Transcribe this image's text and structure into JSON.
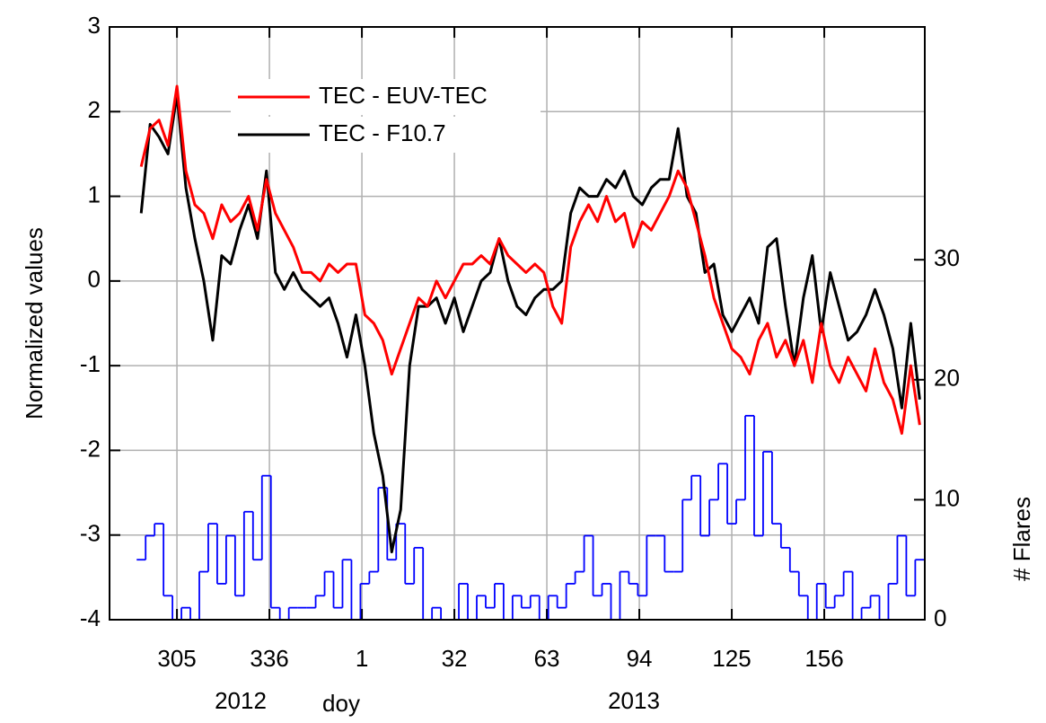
{
  "chart_data": {
    "type": "line",
    "x_label": "doy",
    "y_label": "Normalized values",
    "y2_label": "# Flares",
    "annotations": [
      "2012",
      "2013"
    ],
    "legend": "upper left",
    "grid": true,
    "xlim": [
      282.4,
      555.7
    ],
    "xticks": [
      {
        "value": 305,
        "label": "305"
      },
      {
        "value": 336,
        "label": "336"
      },
      {
        "value": 367,
        "label": "1"
      },
      {
        "value": 398,
        "label": "32"
      },
      {
        "value": 429,
        "label": "63"
      },
      {
        "value": 460,
        "label": "94"
      },
      {
        "value": 491,
        "label": "125"
      },
      {
        "value": 522,
        "label": "156"
      }
    ],
    "ylim": [
      -4,
      3
    ],
    "yticks": [
      -4,
      -3,
      -2,
      -1,
      0,
      1,
      2,
      3
    ],
    "y2lim": [
      0,
      49.4
    ],
    "y2ticks": [
      0,
      10,
      20,
      30
    ],
    "x": [
      293,
      296,
      299,
      302,
      305,
      308,
      311,
      314,
      317,
      320,
      323,
      326,
      329,
      332,
      335,
      338,
      341,
      344,
      347,
      350,
      353,
      356,
      359,
      362,
      365,
      368,
      371,
      374,
      377,
      380,
      383,
      386,
      389,
      392,
      395,
      398,
      401,
      404,
      407,
      410,
      413,
      416,
      419,
      422,
      425,
      428,
      431,
      434,
      437,
      440,
      443,
      446,
      449,
      452,
      455,
      458,
      461,
      464,
      467,
      470,
      473,
      476,
      479,
      482,
      485,
      488,
      491,
      494,
      497,
      500,
      503,
      506,
      509,
      512,
      515,
      518,
      521,
      524,
      527,
      530,
      533,
      536,
      539,
      542,
      545,
      548,
      551,
      554
    ],
    "series": [
      {
        "name": "TEC - EUV-TEC",
        "color": "#ff0000",
        "values": [
          1.35,
          1.8,
          1.9,
          1.6,
          2.3,
          1.3,
          0.9,
          0.8,
          0.5,
          0.9,
          0.7,
          0.8,
          1.0,
          0.6,
          1.2,
          0.8,
          0.6,
          0.4,
          0.1,
          0.1,
          0.0,
          0.2,
          0.1,
          0.2,
          0.2,
          -0.4,
          -0.5,
          -0.7,
          -1.1,
          -0.8,
          -0.5,
          -0.2,
          -0.3,
          0.0,
          -0.2,
          0.0,
          0.2,
          0.2,
          0.3,
          0.2,
          0.5,
          0.3,
          0.2,
          0.1,
          0.2,
          0.1,
          -0.3,
          -0.5,
          0.4,
          0.7,
          0.9,
          0.7,
          1.0,
          0.7,
          0.8,
          0.4,
          0.7,
          0.6,
          0.8,
          1.0,
          1.3,
          1.1,
          0.7,
          0.3,
          -0.2,
          -0.5,
          -0.8,
          -0.9,
          -1.1,
          -0.7,
          -0.5,
          -0.9,
          -0.7,
          -1.0,
          -0.7,
          -1.2,
          -0.5,
          -1.0,
          -1.2,
          -0.9,
          -1.1,
          -1.3,
          -0.8,
          -1.2,
          -1.4,
          -1.8,
          -1.0,
          -1.7
        ]
      },
      {
        "name": "TEC - F10.7",
        "color": "#000000",
        "values": [
          0.8,
          1.85,
          1.7,
          1.5,
          2.2,
          1.1,
          0.5,
          0.0,
          -0.7,
          0.3,
          0.2,
          0.6,
          0.9,
          0.5,
          1.3,
          0.1,
          -0.1,
          0.1,
          -0.1,
          -0.2,
          -0.3,
          -0.2,
          -0.5,
          -0.9,
          -0.4,
          -1.0,
          -1.8,
          -2.3,
          -3.2,
          -2.7,
          -1.0,
          -0.3,
          -0.3,
          -0.2,
          -0.5,
          -0.2,
          -0.6,
          -0.3,
          0.0,
          0.1,
          0.5,
          0.0,
          -0.3,
          -0.4,
          -0.2,
          -0.1,
          -0.1,
          0.0,
          0.8,
          1.1,
          1.0,
          1.0,
          1.2,
          1.1,
          1.3,
          1.0,
          0.9,
          1.1,
          1.2,
          1.2,
          1.8,
          1.0,
          0.8,
          0.1,
          0.2,
          -0.4,
          -0.6,
          -0.4,
          -0.2,
          -0.5,
          0.4,
          0.5,
          -0.3,
          -1.0,
          -0.2,
          0.3,
          -0.6,
          0.1,
          -0.3,
          -0.7,
          -0.6,
          -0.4,
          -0.1,
          -0.4,
          -0.8,
          -1.5,
          -0.5,
          -1.4
        ]
      },
      {
        "color": "#0000ff",
        "axis": "y2",
        "style": "step",
        "values": [
          5,
          7,
          8,
          2,
          0,
          1,
          0,
          4,
          8,
          3,
          7,
          2,
          9,
          5,
          12,
          1,
          0,
          1,
          1,
          1,
          2,
          4,
          1,
          5,
          0,
          3,
          4,
          11,
          5,
          8,
          3,
          6,
          0,
          1,
          0,
          0,
          3,
          0,
          2,
          1,
          3,
          0,
          2,
          1,
          2,
          0,
          2,
          1,
          3,
          4,
          7,
          2,
          3,
          0,
          4,
          3,
          2,
          7,
          7,
          4,
          4,
          10,
          12,
          7,
          10,
          13,
          8,
          10,
          17,
          7,
          14,
          8,
          6,
          4,
          2,
          0,
          3,
          1,
          2,
          4,
          0,
          1,
          2,
          0,
          3,
          7,
          2,
          5
        ]
      }
    ]
  }
}
